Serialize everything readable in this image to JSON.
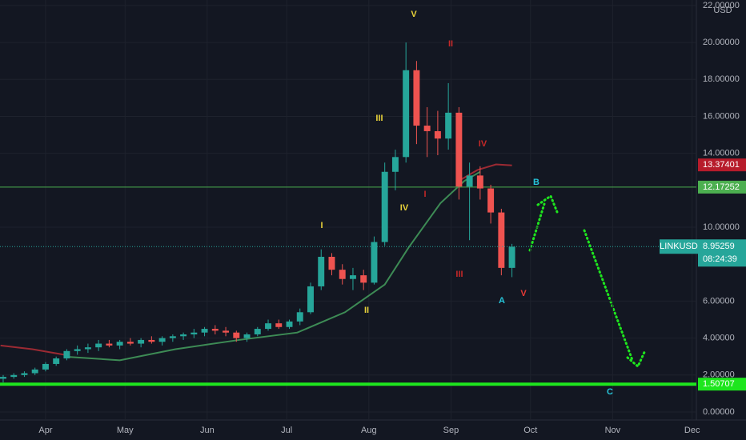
{
  "chart_data": {
    "type": "candlestick",
    "currency": "USD",
    "ylim": [
      0,
      22.3
    ],
    "yticks": [
      {
        "value": 0,
        "label": "0.00000"
      },
      {
        "value": 2,
        "label": "2.00000"
      },
      {
        "value": 4,
        "label": "4.00000"
      },
      {
        "value": 6,
        "label": "6.00000"
      },
      {
        "value": 10,
        "label": "10.00000"
      },
      {
        "value": 14,
        "label": "14.00000"
      },
      {
        "value": 16,
        "label": "16.00000"
      },
      {
        "value": 18,
        "label": "18.00000"
      },
      {
        "value": 20,
        "label": "20.00000"
      },
      {
        "value": 22,
        "label": "22.00000"
      }
    ],
    "xlim": [
      -17.2,
      245.6
    ],
    "xticks": [
      {
        "value": 0,
        "label": "Apr"
      },
      {
        "value": 30,
        "label": "May"
      },
      {
        "value": 61,
        "label": "Jun"
      },
      {
        "value": 91,
        "label": "Jul"
      },
      {
        "value": 122,
        "label": "Aug"
      },
      {
        "value": 153,
        "label": "Sep"
      },
      {
        "value": 183,
        "label": "Oct"
      },
      {
        "value": 214,
        "label": "Nov"
      },
      {
        "value": 244,
        "label": "Dec"
      }
    ],
    "x": [
      -16,
      -12,
      -8,
      -4,
      0,
      4,
      8,
      12,
      16,
      20,
      24,
      28,
      32,
      36,
      40,
      44,
      48,
      52,
      56,
      60,
      64,
      68,
      72,
      76,
      80,
      84,
      88,
      92,
      96,
      100,
      104,
      108,
      112,
      116,
      120,
      124,
      128,
      132,
      136,
      140,
      144,
      148,
      152,
      156,
      160,
      164,
      168,
      172,
      176
    ],
    "ohlc": [
      [
        1.8,
        2.0,
        1.6,
        1.9
      ],
      [
        1.9,
        2.1,
        1.8,
        2.0
      ],
      [
        2.0,
        2.2,
        1.9,
        2.1
      ],
      [
        2.1,
        2.4,
        2.0,
        2.3
      ],
      [
        2.3,
        2.7,
        2.2,
        2.6
      ],
      [
        2.6,
        3.0,
        2.5,
        2.9
      ],
      [
        2.9,
        3.4,
        2.8,
        3.3
      ],
      [
        3.3,
        3.6,
        3.1,
        3.4
      ],
      [
        3.4,
        3.7,
        3.2,
        3.5
      ],
      [
        3.5,
        3.9,
        3.3,
        3.7
      ],
      [
        3.7,
        3.9,
        3.5,
        3.6
      ],
      [
        3.6,
        3.9,
        3.4,
        3.8
      ],
      [
        3.8,
        4.0,
        3.6,
        3.7
      ],
      [
        3.7,
        4.0,
        3.5,
        3.9
      ],
      [
        3.9,
        4.1,
        3.7,
        3.8
      ],
      [
        3.8,
        4.1,
        3.6,
        4.0
      ],
      [
        4.0,
        4.2,
        3.8,
        4.1
      ],
      [
        4.1,
        4.3,
        3.9,
        4.2
      ],
      [
        4.2,
        4.5,
        4.0,
        4.3
      ],
      [
        4.3,
        4.6,
        4.1,
        4.5
      ],
      [
        4.5,
        4.7,
        4.2,
        4.4
      ],
      [
        4.4,
        4.6,
        4.1,
        4.3
      ],
      [
        4.3,
        4.4,
        3.8,
        4.0
      ],
      [
        4.0,
        4.3,
        3.8,
        4.2
      ],
      [
        4.2,
        4.6,
        4.1,
        4.5
      ],
      [
        4.5,
        5.0,
        4.4,
        4.8
      ],
      [
        4.8,
        5.0,
        4.5,
        4.6
      ],
      [
        4.6,
        5.0,
        4.5,
        4.9
      ],
      [
        4.9,
        5.6,
        4.7,
        5.4
      ],
      [
        5.4,
        7.0,
        5.3,
        6.8
      ],
      [
        6.8,
        8.8,
        6.6,
        8.4
      ],
      [
        8.4,
        8.6,
        7.4,
        7.7
      ],
      [
        7.7,
        8.0,
        6.9,
        7.2
      ],
      [
        7.2,
        7.8,
        6.6,
        7.4
      ],
      [
        7.4,
        7.7,
        6.6,
        7.0
      ],
      [
        7.0,
        9.5,
        6.9,
        9.2
      ],
      [
        9.2,
        13.5,
        9.0,
        13.0
      ],
      [
        13.0,
        14.2,
        12.0,
        13.8
      ],
      [
        13.8,
        20.0,
        13.5,
        18.5
      ],
      [
        18.5,
        19.0,
        14.5,
        15.5
      ],
      [
        15.5,
        16.5,
        13.8,
        15.2
      ],
      [
        15.2,
        16.3,
        13.9,
        14.8
      ],
      [
        14.8,
        17.8,
        14.2,
        16.2
      ],
      [
        16.2,
        16.5,
        11.5,
        12.2
      ],
      [
        12.2,
        13.5,
        9.3,
        12.8
      ],
      [
        12.8,
        13.3,
        11.5,
        12.1
      ],
      [
        12.1,
        12.3,
        10.2,
        10.8
      ],
      [
        10.8,
        11.0,
        7.4,
        7.8
      ],
      [
        7.8,
        9.1,
        7.3,
        8.95
      ]
    ],
    "up_color": "#26a69a",
    "down_color": "#ef5350",
    "moving_averages": [
      {
        "color": "#3d8b55",
        "x": [
          7,
          28,
          49,
          73,
          95,
          113,
          128,
          137,
          149,
          158,
          164
        ],
        "values": [
          3.0,
          2.8,
          3.4,
          3.9,
          4.3,
          5.4,
          6.9,
          8.9,
          11.3,
          12.5,
          13.0
        ]
      },
      {
        "color": "#9c2a33",
        "x": [
          -17,
          -5,
          7,
          157,
          163,
          170,
          176
        ],
        "values": [
          3.6,
          3.4,
          3.1,
          12.6,
          13.1,
          13.4,
          13.35
        ]
      }
    ],
    "price_lines": [
      {
        "value": 12.17252,
        "label": "12.17252",
        "color": "#4caf50",
        "width": 1
      },
      {
        "value": 1.50707,
        "label": "1.50707",
        "color": "#1ee61e",
        "width": 4
      },
      {
        "value": 13.37401,
        "label": "13.37401",
        "color": "#b71c2b",
        "width": 0
      }
    ],
    "last_price": {
      "symbol": "LINKUSD",
      "value": 8.95259,
      "label": "8.95259",
      "countdown": "08:24:39",
      "color": "#26a69a"
    },
    "annotations": [
      {
        "text": "V",
        "color": "#e8d23a"
      },
      {
        "text": "III",
        "color": "#e8d23a"
      },
      {
        "text": "I",
        "color": "#e8d23a"
      },
      {
        "text": "IV",
        "color": "#e8d23a"
      },
      {
        "text": "II",
        "color": "#e8d23a"
      },
      {
        "text": "II",
        "color": "#c62828"
      },
      {
        "text": "IV",
        "color": "#c62828"
      },
      {
        "text": "I",
        "color": "#c62828"
      },
      {
        "text": "III",
        "color": "#c62828"
      },
      {
        "text": "V",
        "color": "#e53935"
      },
      {
        "text": "A",
        "color": "#26c6da"
      },
      {
        "text": "B",
        "color": "#26c6da"
      },
      {
        "text": "C",
        "color": "#26c6da"
      }
    ],
    "grid": true
  }
}
